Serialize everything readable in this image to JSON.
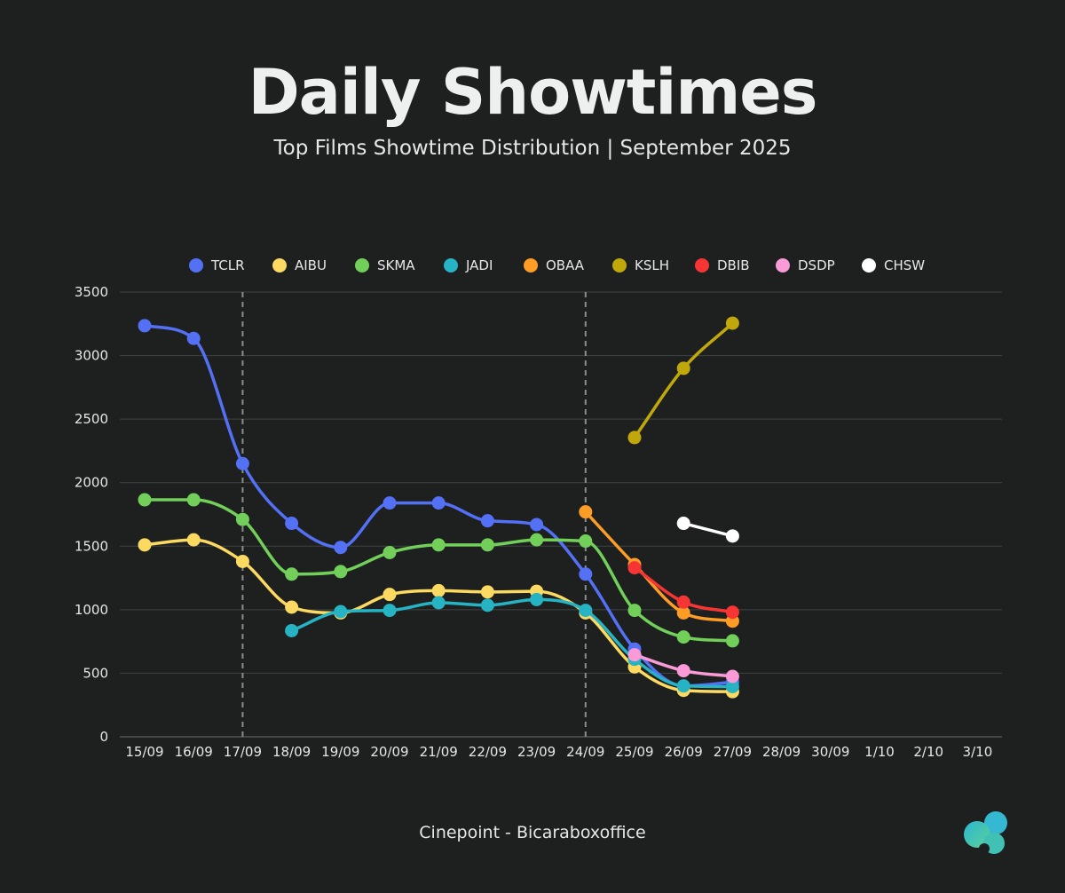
{
  "header": {
    "title": "Daily Showtimes",
    "subtitle": "Top Films Showtime Distribution | September 2025"
  },
  "footer": {
    "source": "Cinepoint - Bicaraboxoffice"
  },
  "chart_data": {
    "type": "line",
    "categories": [
      "15/09",
      "16/09",
      "17/09",
      "18/09",
      "19/09",
      "20/09",
      "21/09",
      "22/09",
      "23/09",
      "24/09",
      "25/09",
      "26/09",
      "27/09",
      "28/09",
      "30/09",
      "1/10",
      "2/10",
      "3/10"
    ],
    "ylim": [
      0,
      3500
    ],
    "yticks": [
      0,
      500,
      1000,
      1500,
      2000,
      2500,
      3000,
      3500
    ],
    "grid": "horizontal",
    "legend_position": "top",
    "reference_lines": [
      "17/09",
      "24/09"
    ],
    "series": [
      {
        "name": "TCLR",
        "color": "#5470f5",
        "values": [
          3235,
          3135,
          2150,
          1680,
          1490,
          1840,
          1840,
          1700,
          1670,
          1280,
          690,
          400,
          430,
          null,
          null,
          null,
          null,
          null
        ]
      },
      {
        "name": "AIBU",
        "color": "#fcd961",
        "values": [
          1510,
          1550,
          1380,
          1020,
          975,
          1120,
          1150,
          1140,
          1145,
          975,
          550,
          365,
          355,
          null,
          null,
          null,
          null,
          null
        ]
      },
      {
        "name": "SKMA",
        "color": "#72d05a",
        "values": [
          1865,
          1865,
          1710,
          1280,
          1300,
          1450,
          1510,
          1510,
          1550,
          1540,
          995,
          785,
          755,
          null,
          null,
          null,
          null,
          null
        ]
      },
      {
        "name": "JADI",
        "color": "#26b3c4",
        "values": [
          null,
          null,
          null,
          835,
          985,
          995,
          1055,
          1035,
          1080,
          995,
          610,
          400,
          395,
          null,
          null,
          null,
          null,
          null
        ]
      },
      {
        "name": "OBAA",
        "color": "#fd9d26",
        "values": [
          null,
          null,
          null,
          null,
          null,
          null,
          null,
          null,
          null,
          1770,
          1355,
          975,
          910,
          null,
          null,
          null,
          null,
          null
        ]
      },
      {
        "name": "KSLH",
        "color": "#bfa70c",
        "values": [
          null,
          null,
          null,
          null,
          null,
          null,
          null,
          null,
          null,
          null,
          2355,
          2900,
          3255,
          null,
          null,
          null,
          null,
          null
        ]
      },
      {
        "name": "DBIB",
        "color": "#f83535",
        "values": [
          null,
          null,
          null,
          null,
          null,
          null,
          null,
          null,
          null,
          null,
          1330,
          1060,
          980,
          null,
          null,
          null,
          null,
          null
        ]
      },
      {
        "name": "DSDP",
        "color": "#fa9ad6",
        "values": [
          null,
          null,
          null,
          null,
          null,
          null,
          null,
          null,
          null,
          null,
          645,
          520,
          475,
          null,
          null,
          null,
          null,
          null
        ]
      },
      {
        "name": "CHSW",
        "color": "#ffffff",
        "values": [
          null,
          null,
          null,
          null,
          null,
          null,
          null,
          null,
          null,
          null,
          null,
          1680,
          1580,
          null,
          null,
          null,
          null,
          null
        ]
      }
    ]
  },
  "colors": {
    "background": "#1d201f",
    "grid": "#3f4342",
    "axis": "#6c706f",
    "text": "#e6e8e7",
    "reference_line": "#8a8e8d"
  },
  "icons": {
    "logo": "cloud-logo-icon"
  }
}
